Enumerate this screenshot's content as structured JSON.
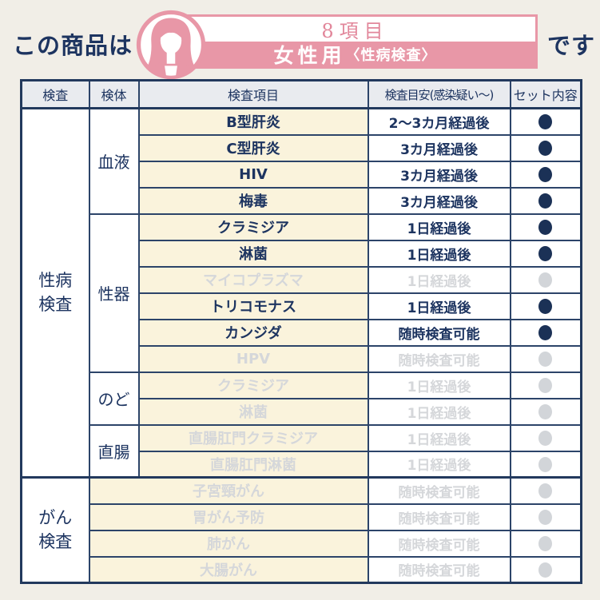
{
  "headline": {
    "prefix": "この商品は",
    "suffix": "です",
    "badge": {
      "count_label": "8項目",
      "title_main": "女性用",
      "title_sub": "〈性病検査〉",
      "icon": "woman-avatar-icon",
      "pink": "#e897a7",
      "count_color": "#e2879b"
    }
  },
  "table": {
    "headers": [
      "検査",
      "検体",
      "検査項目",
      "検査目安(感染疑い～)",
      "セット内容"
    ],
    "included_color": "#1b3156",
    "excluded_color": "#d2d5d9",
    "item_bg": "#faf3dc",
    "header_bg": "#e9ebef",
    "categories": [
      {
        "label": "性病\n検査",
        "groups": [
          {
            "specimen": "血液",
            "rows": [
              {
                "item": "B型肝炎",
                "timing": "2～3カ月経過後",
                "included": true
              },
              {
                "item": "C型肝炎",
                "timing": "3カ月経過後",
                "included": true
              },
              {
                "item": "HIV",
                "timing": "3カ月経過後",
                "included": true
              },
              {
                "item": "梅毒",
                "timing": "3カ月経過後",
                "included": true
              }
            ]
          },
          {
            "specimen": "性器",
            "rows": [
              {
                "item": "クラミジア",
                "timing": "1日経過後",
                "included": true
              },
              {
                "item": "淋菌",
                "timing": "1日経過後",
                "included": true
              },
              {
                "item": "マイコプラズマ",
                "timing": "1日経過後",
                "included": false
              },
              {
                "item": "トリコモナス",
                "timing": "1日経過後",
                "included": true
              },
              {
                "item": "カンジダ",
                "timing": "随時検査可能",
                "included": true
              },
              {
                "item": "HPV",
                "timing": "随時検査可能",
                "included": false
              }
            ]
          },
          {
            "specimen": "のど",
            "rows": [
              {
                "item": "クラミジア",
                "timing": "1日経過後",
                "included": false
              },
              {
                "item": "淋菌",
                "timing": "1日経過後",
                "included": false
              }
            ]
          },
          {
            "specimen": "直腸",
            "rows": [
              {
                "item": "直腸肛門クラミジア",
                "timing": "1日経過後",
                "included": false
              },
              {
                "item": "直腸肛門淋菌",
                "timing": "1日経過後",
                "included": false
              }
            ]
          }
        ]
      },
      {
        "label": "がん\n検査",
        "groups": [
          {
            "specimen": null,
            "rows": [
              {
                "item": "子宮頸がん",
                "timing": "随時検査可能",
                "included": false
              },
              {
                "item": "胃がん予防",
                "timing": "随時検査可能",
                "included": false
              },
              {
                "item": "肺がん",
                "timing": "随時検査可能",
                "included": false
              },
              {
                "item": "大腸がん",
                "timing": "随時検査可能",
                "included": false
              }
            ]
          }
        ]
      }
    ]
  }
}
